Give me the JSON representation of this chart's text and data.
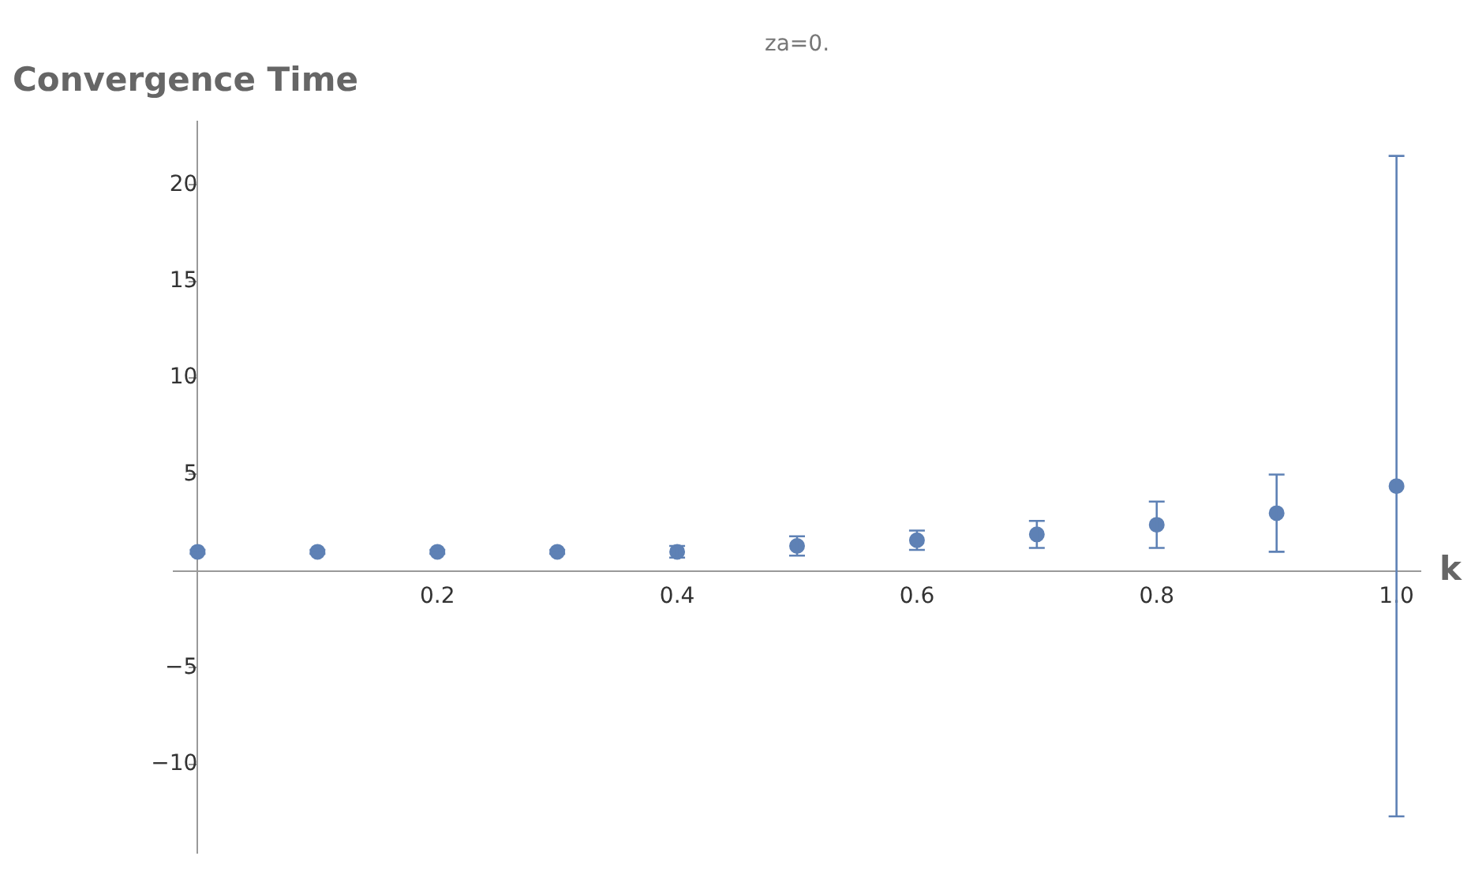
{
  "chart_data": {
    "type": "scatter",
    "title": "za=0.",
    "ylabel": "Convergence Time",
    "xlabel": "k",
    "x": [
      0,
      0.1,
      0.2,
      0.3,
      0.4,
      0.5,
      0.6,
      0.7,
      0.8,
      0.9,
      1.0
    ],
    "series": [
      {
        "color": "#5e81b5",
        "values": [
          1.0,
          1.0,
          1.0,
          1.0,
          1.0,
          1.3,
          1.6,
          1.9,
          2.4,
          3.0,
          4.4
        ],
        "errors": [
          0.1,
          0.1,
          0.1,
          0.1,
          0.3,
          0.5,
          0.5,
          0.7,
          1.2,
          2.0,
          17.1
        ]
      }
    ],
    "xlim": [
      -0.02,
      1.02
    ],
    "ylim": [
      -14.6,
      23.3
    ],
    "xticks": [
      0.2,
      0.4,
      0.6,
      0.8,
      {
        "value": 1,
        "label": "1.0"
      }
    ],
    "yticks": [
      {
        "value": -10,
        "label": "−10"
      },
      {
        "value": -5,
        "label": "−5"
      },
      5,
      10,
      15,
      20
    ],
    "marker": "circle",
    "grid": false,
    "legend": false
  }
}
